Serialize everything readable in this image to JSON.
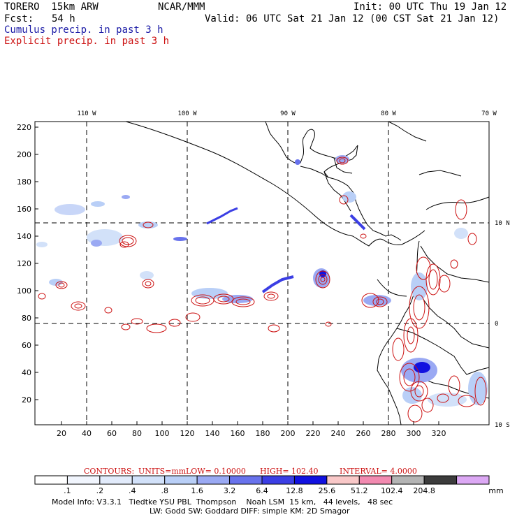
{
  "header": {
    "model": "TORERO  15km ARW",
    "org": "NCAR/MMM",
    "init": "Init: 00 UTC Thu 19 Jan 12",
    "fcst_label": "Fcst:",
    "fcst_value": "54 h",
    "valid": "Valid: 06 UTC Sat 21 Jan 12 (00 CST Sat 21 Jan 12)",
    "cumulus": "Cumulus precip. in past 3 h",
    "explicit": "Explicit precip. in past 3 h"
  },
  "colors": {
    "cumulus": "#1a1aa6",
    "explicit": "#cc1111",
    "coast": "#000000",
    "grid": "#000000"
  },
  "map": {
    "lon_labels": [
      "110 W",
      "100 W",
      "90 W",
      "80 W",
      "70 W"
    ],
    "lat_labels": [
      "10 N",
      "0",
      "10 S"
    ],
    "x_ticks": [
      "20",
      "40",
      "60",
      "80",
      "100",
      "120",
      "140",
      "160",
      "180",
      "200",
      "220",
      "240",
      "260",
      "280",
      "300",
      "320"
    ],
    "y_ticks": [
      "220",
      "200",
      "180",
      "160",
      "140",
      "120",
      "100",
      "80",
      "60",
      "40",
      "20"
    ]
  },
  "contours": {
    "label": "CONTOURS:",
    "units": "UNITS=mm",
    "low": "LOW= 0.10000",
    "high": "HIGH= 102.40",
    "interval": "INTERVAL= 4.0000"
  },
  "colorbar": {
    "bins": [
      {
        "label": ".1",
        "color": "#ffffff"
      },
      {
        "label": ".2",
        "color": "#f1f5fd"
      },
      {
        "label": ".4",
        "color": "#e2ebfb"
      },
      {
        "label": ".8",
        "color": "#d2e1f9"
      },
      {
        "label": "1.6",
        "color": "#b9cff7"
      },
      {
        "label": "3.2",
        "color": "#9aa9f3"
      },
      {
        "label": "6.4",
        "color": "#6872ec"
      },
      {
        "label": "12.8",
        "color": "#3b3ee4"
      },
      {
        "label": "25.6",
        "color": "#1111e0"
      },
      {
        "label": "51.2",
        "color": "#f9c8c8"
      },
      {
        "label": "102.4",
        "color": "#f28ab0"
      },
      {
        "label": "204.8",
        "color": "#b4b4b4"
      },
      {
        "label": "",
        "color": "#3c3c3c"
      },
      {
        "label": "",
        "color": "#dca8f4"
      }
    ],
    "unit": "mm"
  },
  "footer": {
    "line1": "Model Info: V3.3.1   Tiedtke YSU PBL  Thompson    Noah LSM  15 km,   44 levels,   48 sec",
    "line2": "LW: Godd SW: Goddard DIFF: simple KM: 2D Smagor"
  }
}
